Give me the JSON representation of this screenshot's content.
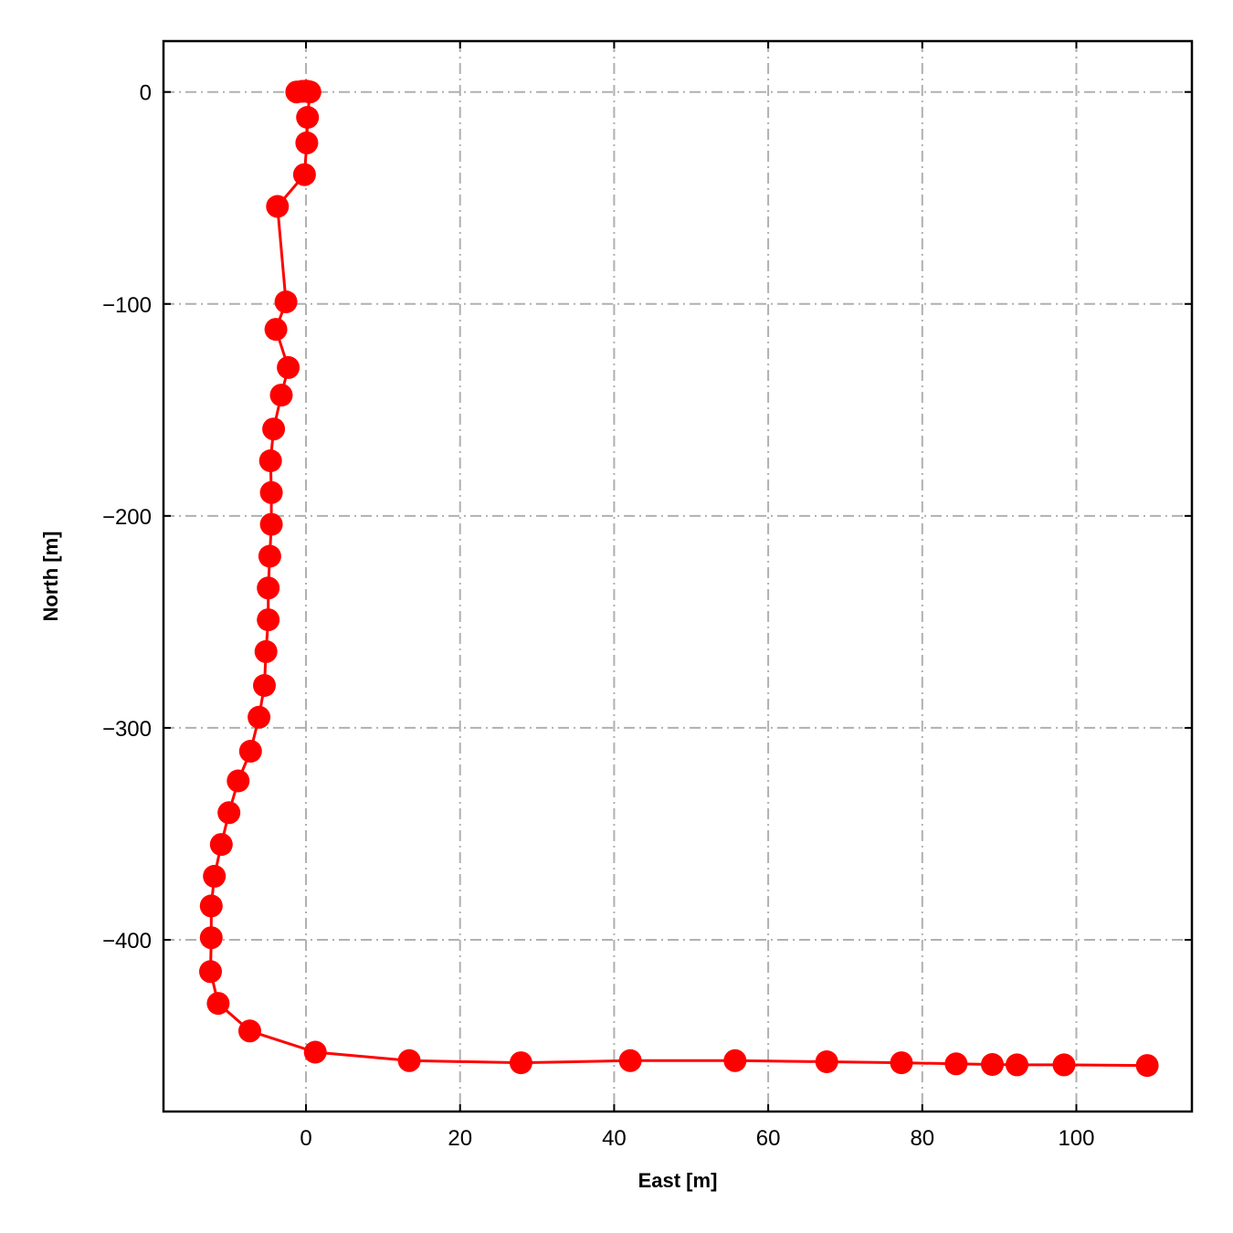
{
  "chart_data": {
    "type": "line",
    "title": "",
    "xlabel": "East [m]",
    "ylabel": "North [m]",
    "xlim": [
      -18.5,
      115
    ],
    "ylim": [
      -481,
      24
    ],
    "xticks": [
      0,
      20,
      40,
      60,
      80,
      100
    ],
    "yticks": [
      0,
      -100,
      -200,
      -300,
      -400
    ],
    "xtick_labels": [
      "0",
      "20",
      "40",
      "60",
      "80",
      "100"
    ],
    "ytick_labels": [
      "0",
      "−100",
      "−200",
      "−300",
      "−400"
    ],
    "grid": true,
    "line_color": "#ff0000",
    "marker": "circle",
    "series": [
      {
        "x": [
          -1.2,
          -0.5,
          0.0,
          0.3,
          0.5,
          0.2,
          0.1,
          -0.2,
          -3.7,
          -2.6,
          -3.9,
          -2.3,
          -3.2,
          -4.2,
          -4.6,
          -4.5,
          -4.5,
          -4.7,
          -4.9,
          -4.9,
          -5.2,
          -5.4,
          -6.1,
          -7.2,
          -8.8,
          -10.0,
          -11.0,
          -11.9,
          -12.3,
          -12.3,
          -12.4,
          -11.4,
          -7.3,
          1.2,
          13.4,
          27.9,
          42.1,
          55.7,
          67.6,
          77.3,
          84.4,
          89.1,
          92.3,
          98.4,
          109.2
        ],
        "y": [
          0.0,
          0.3,
          0.4,
          0.2,
          0.0,
          -12.0,
          -24.0,
          -39.0,
          -54.0,
          -99.0,
          -112.0,
          -130.0,
          -143.0,
          -159.0,
          -174.0,
          -189.0,
          -204.0,
          -219.0,
          -234.0,
          -249.0,
          -264.0,
          -280.0,
          -295.0,
          -311.0,
          -325.0,
          -340.0,
          -355.0,
          -370.0,
          -384.0,
          -399.0,
          -415.0,
          -430.0,
          -443.0,
          -453.0,
          -457.0,
          -458.0,
          -457.0,
          -457.0,
          -457.5,
          -458.0,
          -458.5,
          -458.8,
          -459.0,
          -459.0,
          -459.3
        ]
      }
    ]
  }
}
